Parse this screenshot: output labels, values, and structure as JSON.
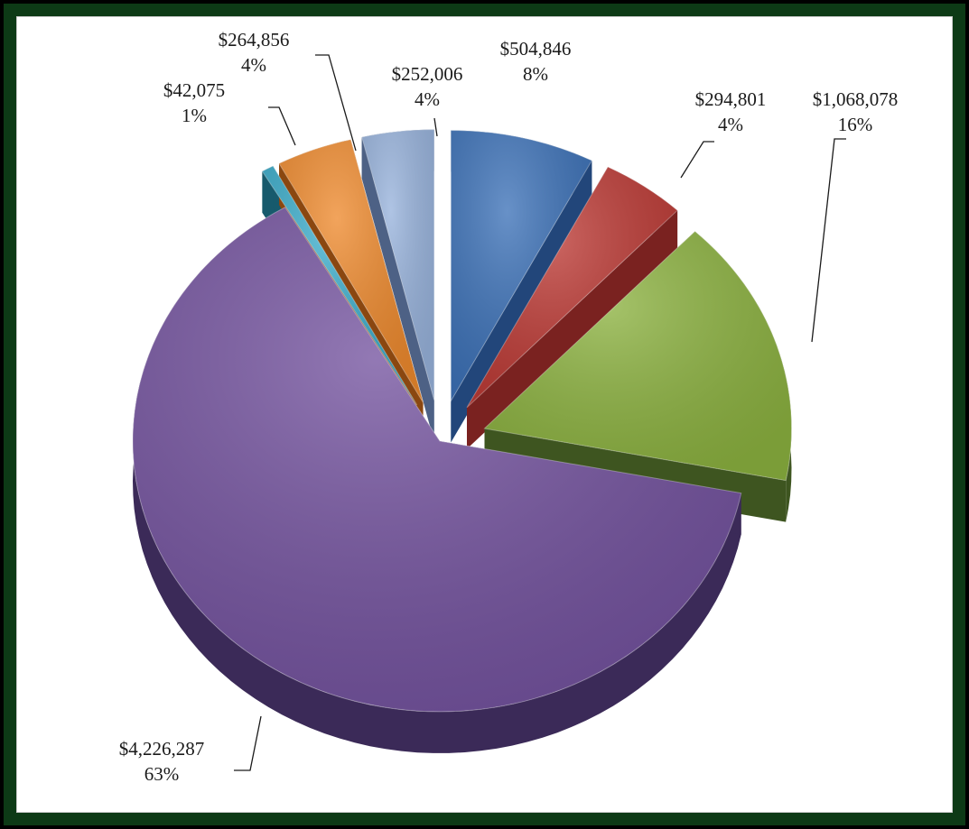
{
  "chart_data": {
    "type": "pie",
    "title": "",
    "style": "3d-exploded",
    "slices": [
      {
        "value": 504846,
        "value_label": "$504,846",
        "percent_label": "8%",
        "color": "#3d72b8",
        "side": "#22467a"
      },
      {
        "value": 294801,
        "value_label": "$294,801",
        "percent_label": "4%",
        "color": "#bd3b36",
        "side": "#7a2220"
      },
      {
        "value": 1068078,
        "value_label": "$1,068,078",
        "percent_label": "16%",
        "color": "#8cb240",
        "side": "#3e5520"
      },
      {
        "value": 4226287,
        "value_label": "$4,226,287",
        "percent_label": "63%",
        "color": "#74539f",
        "side": "#3b2a58"
      },
      {
        "value": 42075,
        "value_label": "$42,075",
        "percent_label": "1%",
        "color": "#3aabc9",
        "side": "#175a6c"
      },
      {
        "value": 264856,
        "value_label": "$264,856",
        "percent_label": "4%",
        "color": "#ee8a2e",
        "side": "#8a4710"
      },
      {
        "value": 252006,
        "value_label": "$252,006",
        "percent_label": "4%",
        "color": "#98b3dc",
        "side": "#4d6185"
      }
    ]
  }
}
